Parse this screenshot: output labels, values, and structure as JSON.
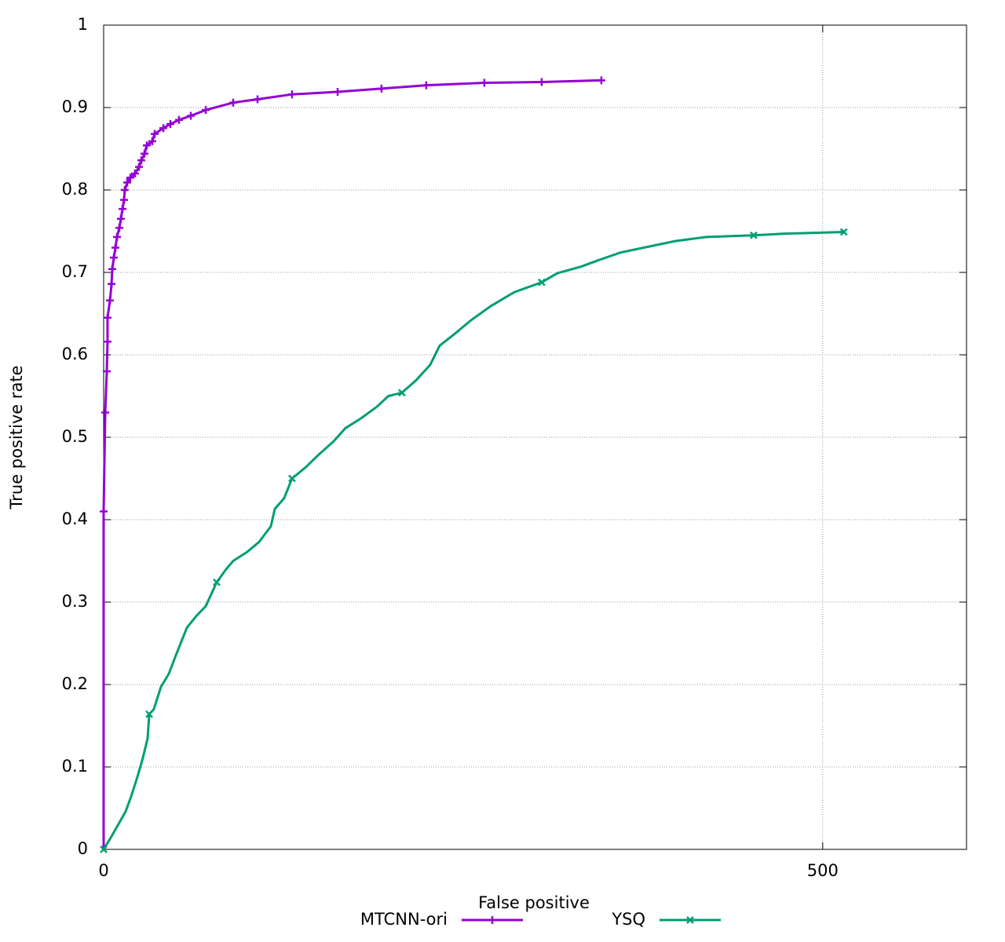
{
  "chart_data": {
    "type": "line",
    "x_label": "False positive",
    "y_label": "True positive rate",
    "xlim": [
      0,
      600
    ],
    "ylim": [
      0,
      1
    ],
    "xticks": [
      0,
      500
    ],
    "yticks": [
      0,
      0.1,
      0.2,
      0.3,
      0.4,
      0.5,
      0.6,
      0.7,
      0.8,
      0.9,
      1
    ],
    "grid": true,
    "legend": "bottom",
    "series": [
      {
        "name": "MTCNN-ori",
        "color": "#9400d3",
        "marker": "plus",
        "x": [
          0,
          0,
          1.1,
          2.2,
          2.7,
          2.7,
          4.4,
          5.5,
          6,
          7.1,
          8.2,
          9.3,
          10.9,
          12,
          13.1,
          14.2,
          14.7,
          16.4,
          18.6,
          21.8,
          24.6,
          26.2,
          28.4,
          30,
          33.8,
          35.5,
          41.5,
          46.4,
          52.4,
          60.6,
          71,
          90.1,
          107,
          131,
          162.7,
          193.2,
          224.3,
          264.7,
          304.6,
          346.1
        ],
        "values": [
          0,
          0.41,
          0.53,
          0.58,
          0.616,
          0.645,
          0.666,
          0.686,
          0.704,
          0.718,
          0.73,
          0.743,
          0.754,
          0.765,
          0.777,
          0.788,
          0.8,
          0.809,
          0.815,
          0.82,
          0.828,
          0.836,
          0.844,
          0.854,
          0.859,
          0.868,
          0.875,
          0.88,
          0.885,
          0.89,
          0.897,
          0.906,
          0.91,
          0.916,
          0.919,
          0.923,
          0.927,
          0.93,
          0.931,
          0.933
        ]
      },
      {
        "name": "YSQ",
        "color": "#009e73",
        "marker": "cross",
        "x": [
          0,
          4.9,
          9.8,
          15.3,
          19.1,
          23.5,
          27.3,
          30.6,
          31.7,
          34.9,
          39.8,
          45.3,
          50.8,
          57.9,
          64.4,
          71,
          78.6,
          85.2,
          90.1,
          99.9,
          108.1,
          116.3,
          119,
          125.5,
          131,
          140.8,
          149,
          159.9,
          168.1,
          179,
          190,
          198,
          207.4,
          217.2,
          227.1,
          233.6,
          244.5,
          255.5,
          269.1,
          285.5,
          304.6,
          315.5,
          331.9,
          342.8,
          359.2,
          375.5,
          397.4,
          419.2,
          452,
          473.8,
          514.7
        ],
        "values": [
          0,
          0.014,
          0.029,
          0.046,
          0.064,
          0.088,
          0.111,
          0.135,
          0.164,
          0.17,
          0.197,
          0.213,
          0.238,
          0.269,
          0.283,
          0.295,
          0.324,
          0.34,
          0.35,
          0.361,
          0.373,
          0.392,
          0.413,
          0.426,
          0.45,
          0.464,
          0.478,
          0.495,
          0.511,
          0.523,
          0.537,
          0.55,
          0.554,
          0.569,
          0.588,
          0.611,
          0.626,
          0.642,
          0.659,
          0.676,
          0.688,
          0.699,
          0.707,
          0.714,
          0.724,
          0.73,
          0.738,
          0.743,
          0.745,
          0.747,
          0.749
        ]
      }
    ]
  }
}
